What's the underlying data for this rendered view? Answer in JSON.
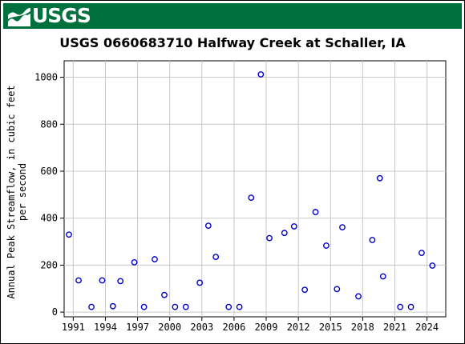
{
  "header": {
    "logo_text": "USGS",
    "logo_mark_icon": "usgs-wave-icon",
    "brand_color": "#00703c"
  },
  "chart_data": {
    "type": "scatter",
    "title": "USGS 0660683710 Halfway Creek at Schaller, IA",
    "ylabel_line1": "Annual Peak Streamflow, in cubic feet",
    "ylabel_line2": "per second",
    "xlabel": "",
    "xlim": [
      1990.6,
      2025.3
    ],
    "ylim": [
      -20,
      1070
    ],
    "xticks": [
      1991,
      1994,
      1997,
      2000,
      2003,
      2006,
      2009,
      2012,
      2015,
      2018,
      2021,
      2024
    ],
    "yticks": [
      0,
      200,
      400,
      600,
      800,
      1000
    ],
    "grid": true,
    "marker_color": "#0000cc",
    "points": [
      {
        "x": 1990.6,
        "y": 330
      },
      {
        "x": 1991.5,
        "y": 135
      },
      {
        "x": 1992.7,
        "y": 22
      },
      {
        "x": 1993.7,
        "y": 135
      },
      {
        "x": 1994.7,
        "y": 25
      },
      {
        "x": 1995.4,
        "y": 132
      },
      {
        "x": 1996.7,
        "y": 212
      },
      {
        "x": 1997.6,
        "y": 22
      },
      {
        "x": 1998.6,
        "y": 225
      },
      {
        "x": 1999.5,
        "y": 73
      },
      {
        "x": 2000.5,
        "y": 22
      },
      {
        "x": 2001.5,
        "y": 22
      },
      {
        "x": 2002.8,
        "y": 125
      },
      {
        "x": 2003.6,
        "y": 368
      },
      {
        "x": 2004.3,
        "y": 235
      },
      {
        "x": 2005.5,
        "y": 22
      },
      {
        "x": 2006.5,
        "y": 22
      },
      {
        "x": 2007.6,
        "y": 487
      },
      {
        "x": 2008.5,
        "y": 1012
      },
      {
        "x": 2009.3,
        "y": 315
      },
      {
        "x": 2010.7,
        "y": 337
      },
      {
        "x": 2011.6,
        "y": 365
      },
      {
        "x": 2012.6,
        "y": 95
      },
      {
        "x": 2013.6,
        "y": 426
      },
      {
        "x": 2014.6,
        "y": 283
      },
      {
        "x": 2015.6,
        "y": 98
      },
      {
        "x": 2016.1,
        "y": 361
      },
      {
        "x": 2017.6,
        "y": 67
      },
      {
        "x": 2018.9,
        "y": 307
      },
      {
        "x": 2019.6,
        "y": 570
      },
      {
        "x": 2019.9,
        "y": 152
      },
      {
        "x": 2021.5,
        "y": 22
      },
      {
        "x": 2022.5,
        "y": 22
      },
      {
        "x": 2023.5,
        "y": 252
      },
      {
        "x": 2024.5,
        "y": 198
      }
    ]
  }
}
